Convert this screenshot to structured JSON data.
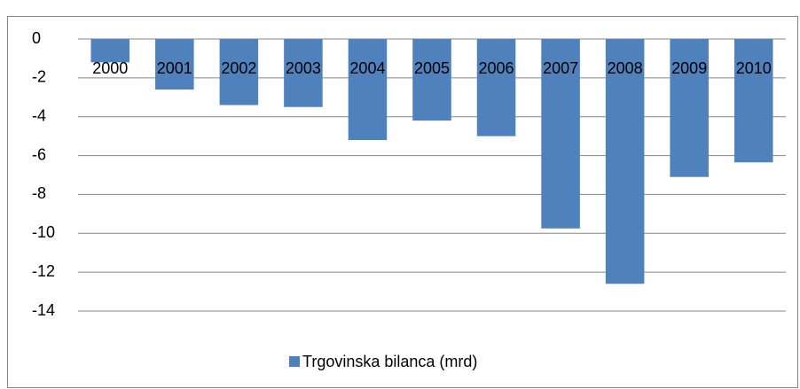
{
  "chart_data": {
    "type": "bar",
    "categories": [
      "2000",
      "2001",
      "2002",
      "2003",
      "2004",
      "2005",
      "2006",
      "2007",
      "2008",
      "2009",
      "2010"
    ],
    "series": [
      {
        "name": "Trgovinska bilanca (mrd)",
        "color": "#4f81bd",
        "values": [
          -1.2,
          -2.6,
          -3.4,
          -3.5,
          -5.2,
          -4.2,
          -5.0,
          -9.75,
          -12.6,
          -7.1,
          -6.35
        ]
      }
    ],
    "ylim": [
      -14,
      0
    ],
    "yticks": [
      0,
      -2,
      -4,
      -6,
      -8,
      -10,
      -12,
      -14
    ],
    "grid": true,
    "legend": "bottom"
  }
}
